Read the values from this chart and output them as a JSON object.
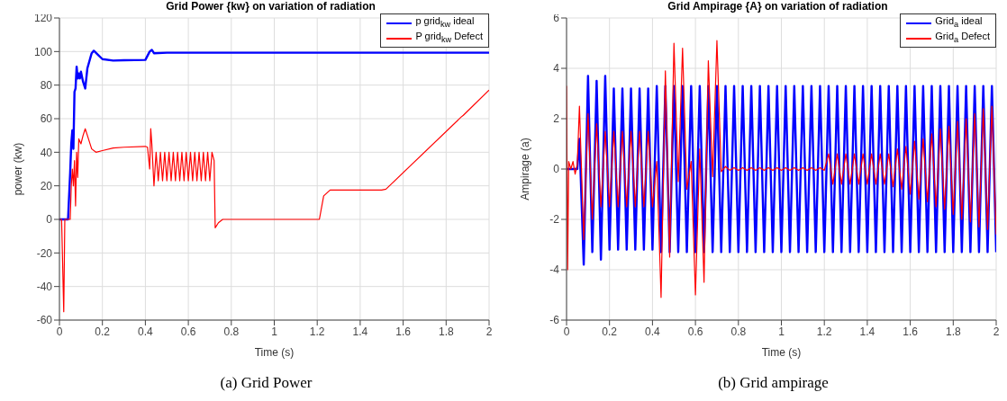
{
  "chart_data": [
    {
      "type": "line",
      "title": "Grid Power {kw} on variation of radiation",
      "xlabel": "Time (s)",
      "ylabel": "power (kw)",
      "xlim": [
        0,
        2
      ],
      "xticks": [
        0,
        0.2,
        0.4,
        0.6,
        0.8,
        1,
        1.2,
        1.4,
        1.6,
        1.8,
        2
      ],
      "ylim": [
        -60,
        120
      ],
      "yticks": [
        -60,
        -40,
        -20,
        0,
        20,
        40,
        60,
        80,
        100,
        120
      ],
      "grid": true,
      "legend": "top right",
      "annotations": [
        "(a) Grid Power"
      ],
      "series": [
        {
          "name": "p grid$_{kw}$ ideal",
          "color": "#0000ff",
          "x": [
            0,
            0.04,
            0.05,
            0.055,
            0.06,
            0.065,
            0.07,
            0.075,
            0.08,
            0.085,
            0.09,
            0.095,
            0.1,
            0.11,
            0.12,
            0.13,
            0.15,
            0.16,
            0.18,
            0.2,
            0.25,
            0.3,
            0.4,
            0.42,
            0.43,
            0.44,
            0.5,
            1,
            2
          ],
          "values": [
            0,
            0,
            28,
            45,
            53,
            42,
            76,
            78,
            91,
            84,
            87,
            84,
            88,
            82,
            78,
            90,
            99,
            100.5,
            98,
            95.5,
            94.6,
            94.8,
            95,
            100,
            101,
            99,
            99.3,
            99.3,
            99.3
          ]
        },
        {
          "name": "P grid$_{kw}$ Defect",
          "color": "#ff0000",
          "x": [
            0,
            0.01,
            0.02,
            0.025,
            0.05,
            0.055,
            0.06,
            0.065,
            0.07,
            0.075,
            0.08,
            0.085,
            0.09,
            0.1,
            0.11,
            0.12,
            0.13,
            0.15,
            0.17,
            0.2,
            0.25,
            0.3,
            0.4,
            0.41,
            0.42,
            0.425,
            0.43,
            0.44,
            0.45,
            0.46,
            0.47,
            0.48,
            0.49,
            0.5,
            0.51,
            0.52,
            0.53,
            0.54,
            0.55,
            0.56,
            0.57,
            0.58,
            0.59,
            0.6,
            0.61,
            0.62,
            0.63,
            0.64,
            0.65,
            0.66,
            0.67,
            0.68,
            0.69,
            0.7,
            0.71,
            0.72,
            0.725,
            0.74,
            0.76,
            1.21,
            1.23,
            1.26,
            1.5,
            1.52,
            1.87,
            1.88,
            2
          ],
          "values": [
            0,
            0,
            -55,
            0,
            0,
            20,
            30,
            20,
            35,
            8,
            40,
            25,
            48,
            45,
            50,
            54,
            50,
            42,
            40,
            41,
            42.5,
            43,
            43.5,
            43,
            30,
            54,
            45,
            20,
            40,
            23,
            40,
            23,
            40,
            23,
            40,
            23,
            40,
            23,
            40,
            23,
            40,
            23,
            40,
            23,
            40,
            23,
            40,
            23,
            40,
            23,
            40,
            23,
            40,
            23,
            40,
            35,
            -5,
            -2,
            0,
            0,
            14,
            17.5,
            17.5,
            18,
            61,
            62,
            77
          ]
        }
      ]
    },
    {
      "type": "line",
      "title": "Grid Ampirage {A} on variation of radiation",
      "xlabel": "Time (s)",
      "ylabel": "Ampirage (a)",
      "xlim": [
        0,
        2
      ],
      "xticks": [
        0,
        0.2,
        0.4,
        0.6,
        0.8,
        1,
        1.2,
        1.4,
        1.6,
        1.8,
        2
      ],
      "ylim": [
        -6,
        6
      ],
      "yticks": [
        -6,
        -4,
        -2,
        0,
        2,
        4,
        6
      ],
      "grid": true,
      "legend": "top right",
      "annotations": [
        "(b) Grid ampirage"
      ],
      "series": [
        {
          "name": "Grid$_{a}$ ideal",
          "color": "#0000ff",
          "x": [
            0,
            0.05,
            0.06,
            0.08,
            0.1,
            0.12,
            0.14,
            0.16,
            0.18,
            0.2,
            0.22,
            0.24,
            0.26,
            0.28,
            0.3,
            0.32,
            0.34,
            0.36,
            0.38,
            0.4,
            0.42,
            0.44,
            0.46,
            0.48,
            0.5,
            0.52,
            0.54,
            0.56,
            0.58,
            0.6,
            0.62,
            0.64,
            0.66,
            0.68,
            0.7,
            0.72,
            0.74,
            0.76,
            0.78,
            0.8,
            0.82,
            0.84,
            0.86,
            0.88,
            0.9,
            0.92,
            0.94,
            0.96,
            0.98,
            1,
            1.02,
            1.04,
            1.06,
            1.08,
            1.1,
            1.12,
            1.14,
            1.16,
            1.18,
            1.2,
            1.22,
            1.24,
            1.26,
            1.28,
            1.3,
            1.32,
            1.34,
            1.36,
            1.38,
            1.4,
            1.42,
            1.44,
            1.46,
            1.48,
            1.5,
            1.52,
            1.54,
            1.56,
            1.58,
            1.6,
            1.62,
            1.64,
            1.66,
            1.68,
            1.7,
            1.72,
            1.74,
            1.76,
            1.78,
            1.8,
            1.82,
            1.84,
            1.86,
            1.88,
            1.9,
            1.92,
            1.94,
            1.96,
            1.98,
            2
          ],
          "values": [
            0,
            0,
            1.2,
            -3.8,
            3.7,
            -3.3,
            3.5,
            -3.6,
            3.7,
            -3.2,
            3.2,
            -3.2,
            3.2,
            -3.2,
            3.2,
            -3.2,
            3.2,
            -3.2,
            3.2,
            -3.2,
            3.3,
            -3.3,
            3.3,
            -3.3,
            3.3,
            -3.3,
            3.3,
            -3.3,
            3.3,
            -3.3,
            3.3,
            -3.3,
            3.3,
            -3.3,
            3.3,
            -3.3,
            3.3,
            -3.3,
            3.3,
            -3.3,
            3.3,
            -3.3,
            3.3,
            -3.3,
            3.3,
            -3.3,
            3.3,
            -3.3,
            3.3,
            -3.3,
            3.3,
            -3.3,
            3.3,
            -3.3,
            3.3,
            -3.3,
            3.3,
            -3.3,
            3.3,
            -3.3,
            3.3,
            -3.3,
            3.3,
            -3.3,
            3.3,
            -3.3,
            3.3,
            -3.3,
            3.3,
            -3.3,
            3.3,
            -3.3,
            3.3,
            -3.3,
            3.3,
            -3.3,
            3.3,
            -3.3,
            3.3,
            -3.3,
            3.3,
            -3.3,
            3.3,
            -3.3,
            3.3,
            -3.3,
            3.3,
            -3.3,
            3.3,
            -3.3,
            3.3,
            -3.3,
            3.3,
            -3.3,
            3.3,
            -3.3,
            3.3,
            -3.3,
            3.3,
            -3.3
          ]
        },
        {
          "name": "Grid$_{a}$ Defect",
          "color": "#ff0000",
          "x": [
            0,
            0.005,
            0.01,
            0.02,
            0.03,
            0.04,
            0.05,
            0.06,
            0.08,
            0.1,
            0.12,
            0.14,
            0.16,
            0.18,
            0.2,
            0.22,
            0.24,
            0.26,
            0.28,
            0.3,
            0.32,
            0.34,
            0.36,
            0.38,
            0.4,
            0.42,
            0.44,
            0.46,
            0.48,
            0.5,
            0.52,
            0.54,
            0.56,
            0.58,
            0.6,
            0.62,
            0.64,
            0.66,
            0.68,
            0.7,
            0.72,
            0.74,
            0.76,
            0.78,
            0.8,
            0.82,
            0.84,
            0.86,
            0.88,
            0.9,
            0.92,
            0.94,
            0.96,
            0.98,
            1,
            1.02,
            1.04,
            1.06,
            1.08,
            1.1,
            1.12,
            1.14,
            1.16,
            1.18,
            1.2,
            1.22,
            1.24,
            1.26,
            1.28,
            1.3,
            1.32,
            1.34,
            1.36,
            1.38,
            1.4,
            1.42,
            1.44,
            1.46,
            1.48,
            1.5,
            1.52,
            1.54,
            1.56,
            1.58,
            1.6,
            1.62,
            1.64,
            1.66,
            1.68,
            1.7,
            1.72,
            1.74,
            1.76,
            1.78,
            1.8,
            1.82,
            1.84,
            1.86,
            1.88,
            1.9,
            1.92,
            1.94,
            1.96,
            1.98,
            2
          ],
          "values": [
            3.3,
            -4,
            0.3,
            0,
            0.3,
            -0.2,
            0.2,
            2.5,
            -2.8,
            2.2,
            -2,
            1.8,
            -1.5,
            1.5,
            -1.5,
            1.5,
            -1.5,
            1.5,
            -1.5,
            1.5,
            -1.5,
            1.5,
            -1.5,
            1.5,
            -1.5,
            0.3,
            -5.1,
            3.9,
            -3.5,
            5,
            -0.5,
            4.8,
            -0.8,
            0.3,
            -5,
            0.8,
            -4.5,
            4.3,
            -0.3,
            5.1,
            -0.1,
            0.1,
            -0.05,
            0.05,
            -0.05,
            0.05,
            -0.05,
            0.05,
            -0.05,
            0.05,
            -0.05,
            0.05,
            -0.05,
            0.05,
            -0.05,
            0.05,
            -0.05,
            0.05,
            -0.05,
            0.05,
            -0.05,
            0.05,
            -0.05,
            0.05,
            -0.05,
            0.6,
            -0.6,
            0.6,
            -0.6,
            0.6,
            -0.6,
            0.6,
            -0.6,
            0.6,
            -0.6,
            0.6,
            -0.6,
            0.6,
            -0.6,
            0.6,
            -0.7,
            0.8,
            -0.8,
            0.9,
            -1,
            1.1,
            -1.2,
            1.2,
            -1.3,
            1.4,
            -1.5,
            1.6,
            -1.6,
            1.7,
            -1.8,
            1.9,
            -2,
            2,
            -2.1,
            2.2,
            -2.3,
            2.4,
            -2.4,
            2.5,
            -2.6
          ]
        }
      ]
    }
  ]
}
